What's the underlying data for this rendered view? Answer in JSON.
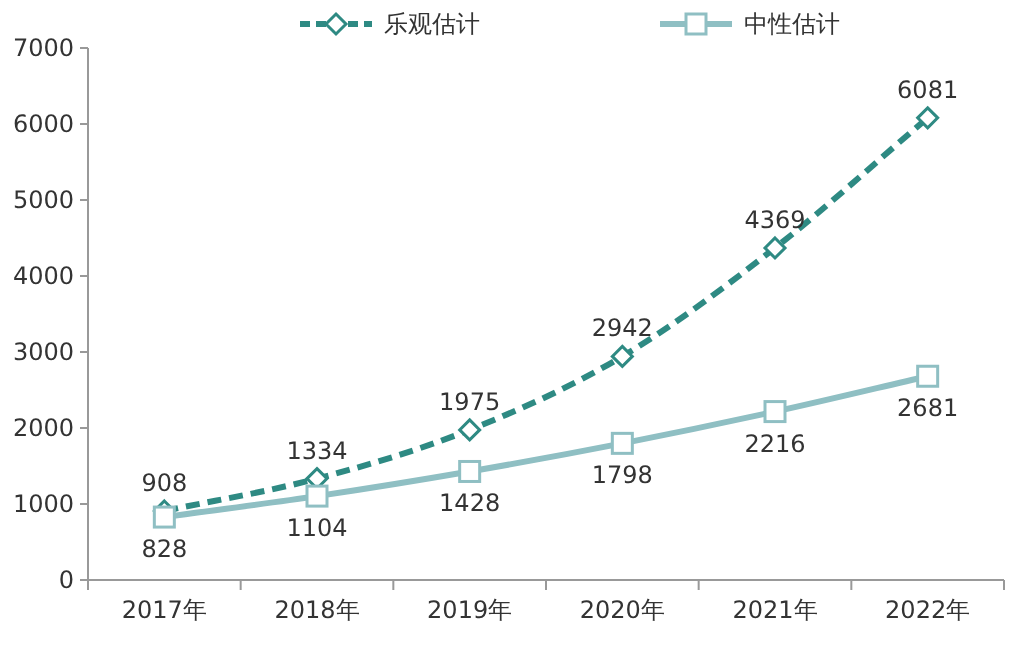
{
  "chart_data": {
    "type": "line",
    "categories": [
      "2017年",
      "2018年",
      "2019年",
      "2020年",
      "2021年",
      "2022年"
    ],
    "series": [
      {
        "name": "乐观估计",
        "color": "#2e8a83",
        "values": [
          908,
          1334,
          1975,
          2942,
          4369,
          6081
        ],
        "marker": "diamond",
        "line_style": "dashed"
      },
      {
        "name": "中性估计",
        "color": "#8fbfc3",
        "values": [
          828,
          1104,
          1428,
          1798,
          2216,
          2681
        ],
        "marker": "square",
        "line_style": "solid"
      }
    ],
    "ylim": [
      0,
      7000
    ],
    "yticks": [
      0,
      1000,
      2000,
      3000,
      4000,
      5000,
      6000,
      7000
    ],
    "grid": false,
    "legend": "top",
    "data_labels": true
  }
}
